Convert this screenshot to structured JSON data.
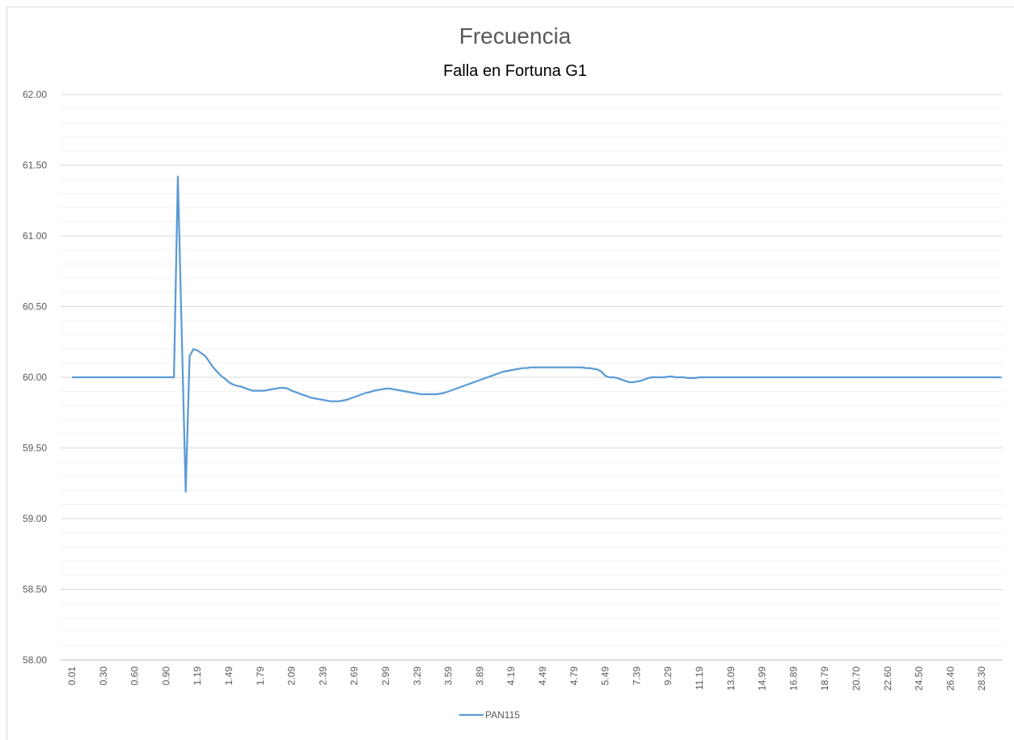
{
  "chart_data": {
    "type": "line",
    "title": "Frecuencia",
    "subtitle": "Falla en Fortuna G1",
    "categories": [
      "0.01",
      null,
      null,
      null,
      null,
      null,
      null,
      null,
      "0.30",
      null,
      null,
      null,
      null,
      null,
      null,
      null,
      "0.60",
      null,
      null,
      null,
      null,
      null,
      null,
      null,
      "0.90",
      null,
      null,
      null,
      null,
      null,
      null,
      null,
      "1.19",
      null,
      null,
      null,
      null,
      null,
      null,
      null,
      "1.49",
      null,
      null,
      null,
      null,
      null,
      null,
      null,
      "1.79",
      null,
      null,
      null,
      null,
      null,
      null,
      null,
      "2.09",
      null,
      null,
      null,
      null,
      null,
      null,
      null,
      "2.39",
      null,
      null,
      null,
      null,
      null,
      null,
      null,
      "2.69",
      null,
      null,
      null,
      null,
      null,
      null,
      null,
      "2.99",
      null,
      null,
      null,
      null,
      null,
      null,
      null,
      "3.29",
      null,
      null,
      null,
      null,
      null,
      null,
      null,
      "3.59",
      null,
      null,
      null,
      null,
      null,
      null,
      null,
      "3.89",
      null,
      null,
      null,
      null,
      null,
      null,
      null,
      "4.19",
      null,
      null,
      null,
      null,
      null,
      null,
      null,
      "4.49",
      null,
      null,
      null,
      null,
      null,
      null,
      null,
      "4.79",
      null,
      null,
      null,
      null,
      null,
      null,
      null,
      "5.49",
      null,
      null,
      null,
      null,
      null,
      null,
      null,
      "7.39",
      null,
      null,
      null,
      null,
      null,
      null,
      null,
      "9.29",
      null,
      null,
      null,
      null,
      null,
      null,
      null,
      "11.19",
      null,
      null,
      null,
      null,
      null,
      null,
      null,
      "13.09",
      null,
      null,
      null,
      null,
      null,
      null,
      null,
      "14.99",
      null,
      null,
      null,
      null,
      null,
      null,
      null,
      "16.89",
      null,
      null,
      null,
      null,
      null,
      null,
      null,
      "18.79",
      null,
      null,
      null,
      null,
      null,
      null,
      null,
      "20.70",
      null,
      null,
      null,
      null,
      null,
      null,
      null,
      "22.60",
      null,
      null,
      null,
      null,
      null,
      null,
      null,
      "24.50",
      null,
      null,
      null,
      null,
      null,
      null,
      null,
      "26.40",
      null,
      null,
      null,
      null,
      null,
      null,
      null,
      "28.30",
      null,
      null,
      null,
      null,
      null
    ],
    "series": [
      {
        "name": "PAN115",
        "color": "#5b9bd5",
        "values": [
          60,
          60,
          60,
          60,
          60,
          60,
          60,
          60,
          60,
          60,
          60,
          60,
          60,
          60,
          60,
          60,
          60,
          60,
          60,
          60,
          60,
          60,
          60,
          60,
          60,
          60,
          60,
          61.42,
          60.3,
          59.19,
          60.15,
          60.2,
          60.19,
          60.17,
          60.15,
          60.11,
          60.07,
          60.04,
          60.01,
          59.99,
          59.965,
          59.95,
          59.94,
          59.935,
          59.925,
          59.915,
          59.905,
          59.905,
          59.905,
          59.905,
          59.91,
          59.915,
          59.92,
          59.925,
          59.925,
          59.92,
          59.905,
          59.895,
          59.885,
          59.875,
          59.865,
          59.855,
          59.85,
          59.845,
          59.84,
          59.835,
          59.83,
          59.83,
          59.83,
          59.835,
          59.84,
          59.85,
          59.86,
          59.87,
          59.88,
          59.89,
          59.895,
          59.905,
          59.91,
          59.915,
          59.92,
          59.92,
          59.915,
          59.91,
          59.905,
          59.9,
          59.895,
          59.89,
          59.885,
          59.88,
          59.88,
          59.88,
          59.88,
          59.88,
          59.885,
          59.89,
          59.9,
          59.91,
          59.92,
          59.93,
          59.94,
          59.95,
          59.96,
          59.97,
          59.98,
          59.99,
          60,
          60.01,
          60.02,
          60.03,
          60.04,
          60.045,
          60.05,
          60.055,
          60.06,
          60.065,
          60.065,
          60.07,
          60.07,
          60.07,
          60.07,
          60.07,
          60.07,
          60.07,
          60.07,
          60.07,
          60.07,
          60.07,
          60.07,
          60.07,
          60.07,
          60.065,
          60.065,
          60.06,
          60.055,
          60.04,
          60.01,
          60,
          60,
          59.995,
          59.985,
          59.975,
          59.965,
          59.965,
          59.97,
          59.975,
          59.985,
          59.995,
          60,
          60,
          60,
          60,
          60.005,
          60.005,
          60,
          60,
          60,
          59.995,
          59.995,
          59.995,
          60,
          60,
          60,
          60,
          60,
          60,
          60,
          60,
          60,
          60,
          60,
          60,
          60,
          60,
          60,
          60,
          60,
          60,
          60,
          60,
          60,
          60,
          60,
          60,
          60,
          60,
          60,
          60,
          60,
          60,
          60,
          60,
          60,
          60,
          60,
          60,
          60,
          60,
          60,
          60,
          60,
          60,
          60,
          60,
          60,
          60,
          60,
          60,
          60,
          60,
          60,
          60,
          60,
          60,
          60,
          60,
          60,
          60,
          60,
          60,
          60,
          60,
          60,
          60,
          60,
          60,
          60,
          60,
          60,
          60,
          60,
          60,
          60,
          60,
          60,
          60,
          60,
          60
        ]
      }
    ],
    "ylim": [
      58,
      62
    ],
    "yticks": [
      {
        "value": 58,
        "label": "58.00"
      },
      {
        "value": 58.5,
        "label": "58.50"
      },
      {
        "value": 59,
        "label": "59.00"
      },
      {
        "value": 59.5,
        "label": "59.50"
      },
      {
        "value": 60,
        "label": "60.00"
      },
      {
        "value": 60.5,
        "label": "60.50"
      },
      {
        "value": 61,
        "label": "61.00"
      },
      {
        "value": 61.5,
        "label": "61.50"
      },
      {
        "value": 62,
        "label": "62.00"
      }
    ],
    "yminor": [
      58.1,
      58.2,
      58.3,
      58.4,
      58.6,
      58.7,
      58.8,
      58.9,
      59.1,
      59.2,
      59.3,
      59.4,
      59.6,
      59.7,
      59.8,
      59.9,
      60.1,
      60.2,
      60.3,
      60.4,
      60.6,
      60.7,
      60.8,
      60.9,
      61.1,
      61.2,
      61.3,
      61.4,
      61.6,
      61.7,
      61.8,
      61.9
    ],
    "grid": true,
    "legend": "bottom"
  }
}
